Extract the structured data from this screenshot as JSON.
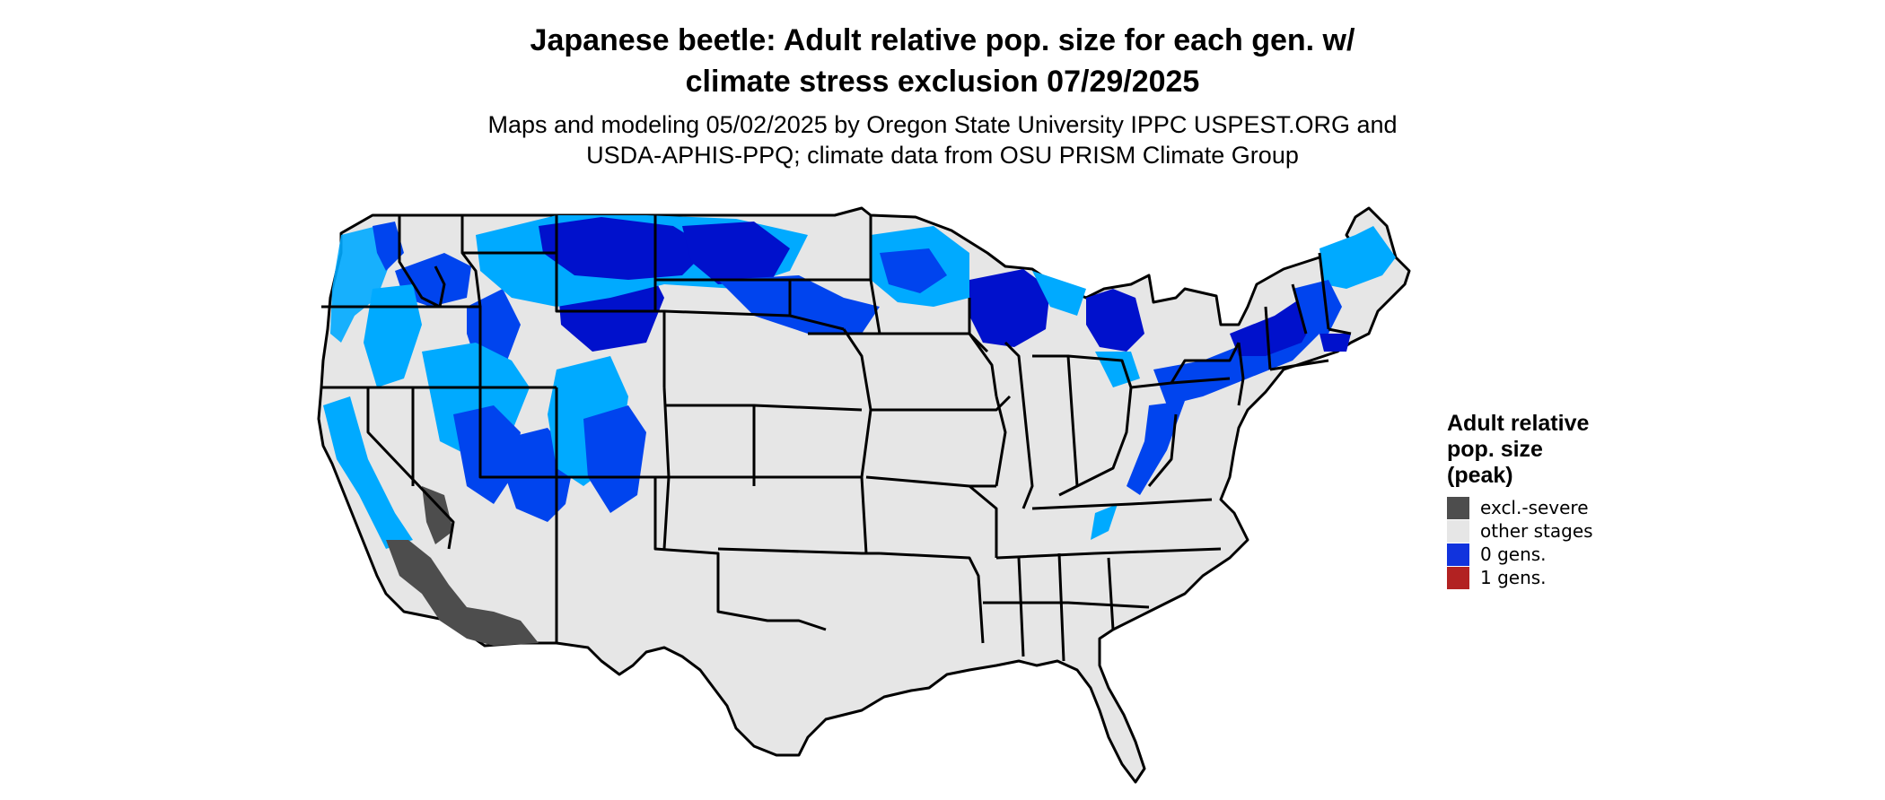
{
  "title_line1": "Japanese beetle: Adult relative pop. size for each gen. w/",
  "title_line2": "climate stress exclusion 07/29/2025",
  "subtitle_line1": "Maps and modeling 05/02/2025 by Oregon State University IPPC USPEST.ORG and",
  "subtitle_line2": "USDA-APHIS-PPQ; climate data from OSU PRISM Climate Group",
  "legend": {
    "title_line1": "Adult relative",
    "title_line2": "pop. size",
    "title_line3": "(peak)",
    "items": [
      {
        "label": "excl.-severe",
        "color": "#4d4d4d"
      },
      {
        "label": "other stages",
        "color": "#e6e6e6"
      },
      {
        "label": "0 gens.",
        "color": "#1133dd"
      },
      {
        "label": "1 gens.",
        "color": "#b22222"
      }
    ]
  },
  "colors": {
    "land": "#e6e6e6",
    "border": "#000000",
    "excl_severe": "#4d4d4d",
    "blue_dark": "#0011cc",
    "blue_mid": "#0044ee",
    "blue_light": "#00aaff"
  }
}
